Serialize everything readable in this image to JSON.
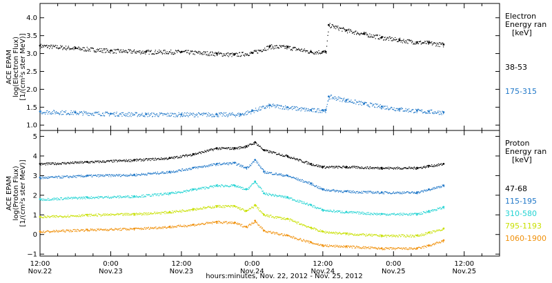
{
  "x_axis": {
    "label": "hours:minutes, Nov. 22, 2012 - Nov. 25, 2012",
    "range": [
      0,
      78
    ],
    "ticks": [
      {
        "t": 0,
        "l1": "12:00",
        "l2": "Nov.22"
      },
      {
        "t": 12,
        "l1": "0:00",
        "l2": "Nov.23"
      },
      {
        "t": 24,
        "l1": "12:00",
        "l2": "Nov.23"
      },
      {
        "t": 36,
        "l1": "0:00",
        "l2": "Nov.24"
      },
      {
        "t": 48,
        "l1": "12:00",
        "l2": "Nov.24"
      },
      {
        "t": 60,
        "l1": "0:00",
        "l2": "Nov.25"
      },
      {
        "t": 72,
        "l1": "12:00",
        "l2": "Nov.25"
      }
    ]
  },
  "chart_data": [
    {
      "type": "scatter",
      "name": "electron",
      "ylabel_lines": [
        "ACE EPAM",
        "log(Electron Flux)",
        "[1/(cm²s ster MeV)]"
      ],
      "ylim": [
        0.85,
        4.4
      ],
      "yticks": [
        1.0,
        1.5,
        2.0,
        2.5,
        3.0,
        3.5,
        4.0
      ],
      "ytick_labels": [
        "1.0",
        "1.5",
        "2.0",
        "2.5",
        "3.0",
        "3.5",
        "4.0"
      ],
      "legend_title": [
        "Electron",
        "Energy ran",
        "[keV]"
      ],
      "series": [
        {
          "name": "38-53",
          "color": "#000000",
          "x": [
            0,
            6,
            12,
            18,
            24,
            30,
            33,
            36,
            39,
            42,
            46,
            48,
            48.5,
            49,
            52,
            55,
            58,
            61,
            64,
            66,
            68.5
          ],
          "y": [
            3.22,
            3.15,
            3.08,
            3.05,
            3.05,
            3.0,
            2.97,
            3.02,
            3.2,
            3.18,
            3.05,
            3.05,
            3.05,
            3.8,
            3.65,
            3.55,
            3.45,
            3.38,
            3.32,
            3.3,
            3.25
          ]
        },
        {
          "name": "175-315",
          "color": "#1f77c8",
          "x": [
            0,
            6,
            12,
            18,
            24,
            30,
            34,
            36,
            39,
            42,
            46,
            48,
            48.5,
            49,
            52,
            55,
            58,
            61,
            64,
            66,
            68.5
          ],
          "y": [
            1.38,
            1.35,
            1.32,
            1.3,
            1.3,
            1.3,
            1.3,
            1.4,
            1.55,
            1.5,
            1.42,
            1.42,
            1.42,
            1.8,
            1.7,
            1.6,
            1.52,
            1.45,
            1.4,
            1.38,
            1.36
          ]
        }
      ]
    },
    {
      "type": "scatter",
      "name": "proton",
      "ylabel_lines": [
        "ACE EPAM",
        "log(Proton Flux)",
        "[1/(cm²s ster MeV)]"
      ],
      "ylim": [
        -1.1,
        5.3
      ],
      "yticks": [
        -1,
        0,
        1,
        2,
        3,
        4,
        5
      ],
      "ytick_labels": [
        "−1",
        "0",
        "1",
        "2",
        "3",
        "4",
        "5"
      ],
      "legend_title": [
        "Proton",
        "Energy ran",
        "[keV]"
      ],
      "series": [
        {
          "name": "47-68",
          "color": "#000000",
          "x": [
            0,
            8,
            16,
            22,
            26,
            30,
            33,
            35,
            36.5,
            38,
            42,
            46,
            48,
            52,
            58,
            64,
            66,
            68.5
          ],
          "y": [
            3.6,
            3.7,
            3.8,
            3.9,
            4.1,
            4.4,
            4.4,
            4.5,
            4.7,
            4.3,
            4.0,
            3.6,
            3.45,
            3.45,
            3.4,
            3.4,
            3.5,
            3.6
          ]
        },
        {
          "name": "115-195",
          "color": "#1f77c8",
          "x": [
            0,
            8,
            16,
            22,
            26,
            30,
            33,
            35,
            36.5,
            38,
            42,
            46,
            48,
            52,
            58,
            64,
            66,
            68.5
          ],
          "y": [
            2.9,
            3.0,
            3.05,
            3.2,
            3.4,
            3.6,
            3.65,
            3.4,
            3.8,
            3.2,
            3.0,
            2.6,
            2.3,
            2.2,
            2.15,
            2.15,
            2.3,
            2.5
          ]
        },
        {
          "name": "310-580",
          "color": "#22d3d3",
          "x": [
            0,
            8,
            16,
            22,
            26,
            30,
            33,
            35,
            36.5,
            38,
            42,
            46,
            48,
            52,
            58,
            64,
            66,
            68.5
          ],
          "y": [
            1.8,
            1.9,
            1.95,
            2.1,
            2.3,
            2.5,
            2.5,
            2.3,
            2.7,
            2.1,
            1.9,
            1.5,
            1.25,
            1.15,
            1.05,
            1.05,
            1.2,
            1.4
          ]
        },
        {
          "name": "795-1193",
          "color": "#c8e000",
          "x": [
            0,
            8,
            16,
            22,
            26,
            30,
            33,
            35,
            36.5,
            38,
            42,
            46,
            48,
            52,
            58,
            64,
            66,
            68.5
          ],
          "y": [
            0.9,
            1.0,
            1.05,
            1.15,
            1.3,
            1.45,
            1.45,
            1.2,
            1.5,
            1.0,
            0.8,
            0.35,
            0.15,
            0.05,
            -0.05,
            -0.05,
            0.1,
            0.3
          ]
        },
        {
          "name": "1060-1900",
          "color": "#f0900a",
          "x": [
            0,
            8,
            16,
            22,
            26,
            30,
            33,
            35,
            36.5,
            38,
            42,
            46,
            48,
            52,
            58,
            64,
            66,
            68.5
          ],
          "y": [
            0.15,
            0.25,
            0.3,
            0.4,
            0.5,
            0.65,
            0.6,
            0.4,
            0.7,
            0.2,
            -0.05,
            -0.4,
            -0.55,
            -0.6,
            -0.7,
            -0.7,
            -0.55,
            -0.3
          ]
        }
      ]
    }
  ]
}
